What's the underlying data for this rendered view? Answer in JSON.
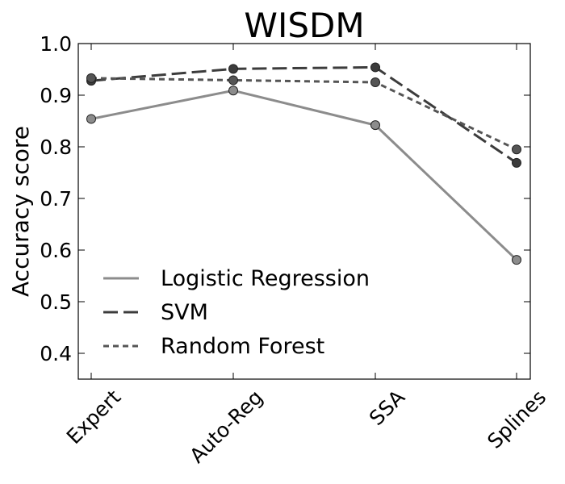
{
  "chart_data": {
    "type": "line",
    "title": "WISDM",
    "xlabel": "",
    "ylabel": "Accuracy score",
    "categories": [
      "Expert",
      "Auto-Reg",
      "SSA",
      "Splines"
    ],
    "ylim": [
      0.35,
      1.0
    ],
    "yticks": [
      "0.4",
      "0.5",
      "0.6",
      "0.7",
      "0.8",
      "0.9",
      "1.0"
    ],
    "grid": false,
    "legend_position": "bottom-left",
    "series": [
      {
        "name": "Logistic Regression",
        "values": [
          0.854,
          0.909,
          0.842,
          0.581
        ],
        "color": "#8c8c8c",
        "dash": "solid"
      },
      {
        "name": "SVM",
        "values": [
          0.928,
          0.951,
          0.954,
          0.769
        ],
        "color": "#3c3c3c",
        "dash": "longdash"
      },
      {
        "name": "Random Forest",
        "values": [
          0.933,
          0.929,
          0.925,
          0.795
        ],
        "color": "#555555",
        "dash": "shortdash"
      }
    ]
  }
}
